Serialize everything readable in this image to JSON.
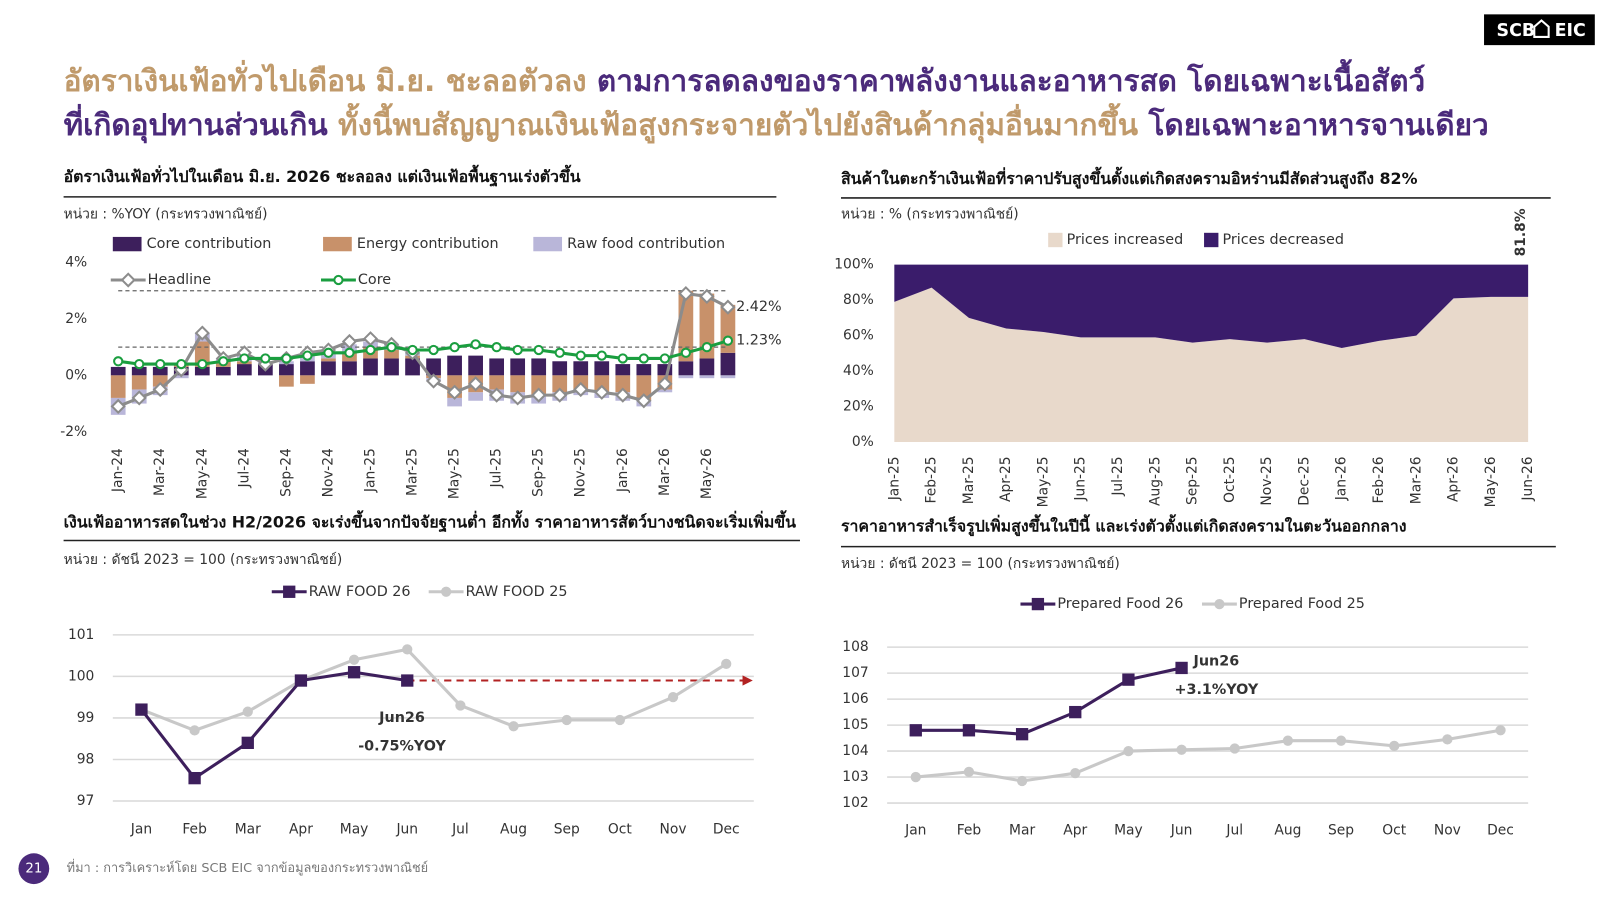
{
  "header": {
    "lines": [
      [
        {
          "text": "อัตราเงินเฟ้อทั่วไปเดือน มิ.ย. ชะลอตัวลง",
          "color": "#c09a6b"
        },
        {
          "text": " ตามการลดลงของราคาพลังงานและอาหารสด โดยเฉพาะเนื้อสัตว์",
          "color": "#4b2a7b"
        }
      ],
      [
        {
          "text": "ที่เกิดอุปทานส่วนเกิน",
          "color": "#4b2a7b"
        },
        {
          "text": " ทั้งนี้พบสัญญาณเงินเฟ้อสูงกระจายตัวไปยังสินค้ากลุ่มอื่นมากขึ้น",
          "color": "#c09a6b"
        },
        {
          "text": " โดยเฉพาะอาหารจานเดียว",
          "color": "#4b2a7b"
        }
      ]
    ]
  },
  "logo": {
    "left": "SCB",
    "right": "EIC"
  },
  "footer": {
    "page_number": "21",
    "source": "ที่มา : การวิเคราะห์โดย SCB EIC จากข้อมูลของกระทรวงพาณิชย์"
  },
  "chart_data": [
    {
      "type": "combo",
      "title": "อัตราเงินเฟ้อทั่วไปในเดือน มิ.ย. 2026 ชะลอลง แต่เงินเฟ้อพื้นฐานเร่งตัวขึ้น",
      "subtitle": "หน่วย : %YOY (กระทรวงพาณิชย์)",
      "categories": [
        "Jan-24",
        null,
        "Mar-24",
        null,
        "May-24",
        null,
        "Jul-24",
        null,
        "Sep-24",
        null,
        "Nov-24",
        null,
        "Jan-25",
        null,
        "Mar-25",
        null,
        "May-25",
        null,
        "Jul-25",
        null,
        "Sep-25",
        null,
        "Nov-25",
        null,
        "Jan-26",
        null,
        "Mar-26",
        null,
        "May-26",
        null
      ],
      "series": [
        {
          "name": "Core contribution",
          "type": "bar",
          "color": "#3d1f5c",
          "values": [
            0.3,
            0.3,
            0.3,
            0.3,
            0.3,
            0.3,
            0.4,
            0.4,
            0.4,
            0.5,
            0.5,
            0.5,
            0.6,
            0.6,
            0.6,
            0.6,
            0.7,
            0.7,
            0.6,
            0.6,
            0.6,
            0.5,
            0.5,
            0.5,
            0.4,
            0.4,
            0.4,
            0.5,
            0.6,
            0.8
          ]
        },
        {
          "name": "Energy contribution",
          "type": "bar",
          "color": "#c8916a",
          "values": [
            -0.8,
            -0.5,
            -0.4,
            0.1,
            0.9,
            0.2,
            0.1,
            0,
            -0.4,
            -0.3,
            0.1,
            0.3,
            0.4,
            0.3,
            0.1,
            -0.1,
            -0.8,
            -0.6,
            -0.5,
            -0.6,
            -0.7,
            -0.6,
            -0.5,
            -0.6,
            -0.6,
            -0.9,
            -0.5,
            2.5,
            2.3,
            1.7
          ]
        },
        {
          "name": "Raw food contribution",
          "type": "bar",
          "color": "#b9b6d9",
          "values": [
            -0.6,
            -0.5,
            -0.3,
            -0.1,
            0.3,
            0.1,
            0.2,
            0.1,
            0.1,
            0.3,
            0.2,
            0.3,
            0.2,
            0.2,
            0.1,
            -0.1,
            -0.3,
            -0.3,
            -0.4,
            -0.4,
            -0.3,
            -0.3,
            -0.2,
            -0.2,
            -0.3,
            -0.2,
            -0.1,
            -0.1,
            -0.1,
            -0.1
          ]
        },
        {
          "name": "Headline",
          "type": "line",
          "marker": "diamond-open",
          "color": "#8c8c8c",
          "values": [
            -1.1,
            -0.8,
            -0.5,
            0.2,
            1.5,
            0.6,
            0.8,
            0.4,
            0.6,
            0.8,
            0.9,
            1.2,
            1.3,
            1.1,
            0.8,
            -0.2,
            -0.6,
            -0.3,
            -0.7,
            -0.8,
            -0.7,
            -0.7,
            -0.5,
            -0.6,
            -0.7,
            -0.9,
            -0.3,
            2.9,
            2.8,
            2.42
          ],
          "value_labels": [
            null,
            null,
            null,
            null,
            null,
            null,
            null,
            null,
            null,
            null,
            null,
            null,
            null,
            null,
            null,
            null,
            null,
            null,
            null,
            null,
            null,
            null,
            null,
            null,
            null,
            null,
            null,
            null,
            null,
            "2.42%"
          ]
        },
        {
          "name": "Core",
          "type": "line",
          "marker": "circle-open",
          "color": "#1a9e3f",
          "values": [
            0.5,
            0.4,
            0.4,
            0.4,
            0.4,
            0.5,
            0.6,
            0.6,
            0.6,
            0.7,
            0.8,
            0.8,
            0.9,
            1.0,
            0.9,
            0.9,
            1.0,
            1.1,
            1.0,
            0.9,
            0.9,
            0.8,
            0.7,
            0.7,
            0.6,
            0.6,
            0.6,
            0.8,
            1.0,
            1.23
          ],
          "value_labels": [
            null,
            null,
            null,
            null,
            null,
            null,
            null,
            null,
            null,
            null,
            null,
            null,
            null,
            null,
            null,
            null,
            null,
            null,
            null,
            null,
            null,
            null,
            null,
            null,
            null,
            null,
            null,
            null,
            null,
            "1.23%"
          ]
        }
      ],
      "reference_lines": [
        1,
        3
      ],
      "ylim": [
        -2,
        4
      ],
      "yticks": [
        {
          "value": -2,
          "label": "-2%"
        },
        {
          "value": 0,
          "label": "0%"
        },
        {
          "value": 2,
          "label": "2%"
        },
        {
          "value": 4,
          "label": "4%"
        }
      ],
      "grid": false
    },
    {
      "type": "area",
      "title": "สินค้าในตะกร้าเงินเฟ้อที่ราคาปรับสูงขึ้นตั้งแต่เกิดสงครามอิหร่านมีสัดส่วนสูงถึง 82%",
      "subtitle": "หน่วย : % (กระทรวงพาณิชย์)",
      "categories": [
        "Jan-25",
        "Feb-25",
        "Mar-25",
        "Apr-25",
        "May-25",
        "Jun-25",
        "Jul-25",
        "Aug-25",
        "Sep-25",
        "Oct-25",
        "Nov-25",
        "Dec-25",
        "Jan-26",
        "Feb-26",
        "Mar-26",
        "Apr-26",
        "May-26",
        "Jun-26"
      ],
      "series": [
        {
          "name": "Prices increased",
          "type": "area",
          "color": "#e8d9cb",
          "values": [
            79,
            87,
            70,
            64,
            62,
            59,
            59,
            59,
            56,
            58,
            56,
            58,
            53,
            57,
            60,
            81,
            81.8,
            81.8
          ],
          "value_labels": [
            null,
            null,
            null,
            null,
            null,
            null,
            null,
            null,
            null,
            null,
            null,
            null,
            null,
            null,
            null,
            null,
            null,
            "81.8%"
          ]
        },
        {
          "name": "Prices decreased",
          "type": "area",
          "color": "#3a1c6b",
          "values": [
            21,
            13,
            30,
            36,
            38,
            41,
            41,
            41,
            44,
            42,
            44,
            42,
            47,
            43,
            40,
            19,
            18.2,
            18.2
          ]
        }
      ],
      "ylim": [
        0,
        100
      ],
      "yticks": [
        {
          "value": 0,
          "label": "0%"
        },
        {
          "value": 20,
          "label": "20%"
        },
        {
          "value": 40,
          "label": "40%"
        },
        {
          "value": 60,
          "label": "60%"
        },
        {
          "value": 80,
          "label": "80%"
        },
        {
          "value": 100,
          "label": "100%"
        }
      ],
      "grid": false
    },
    {
      "type": "line",
      "title": "เงินเฟ้ออาหารสดในช่วง H2/2026 จะเร่งขึ้นจากปัจจัยฐานต่ำ อีกทั้ง ราคาอาหารสัตว์บางชนิดจะเริ่มเพิ่มขึ้น",
      "subtitle": "หน่วย : ดัชนี 2023 = 100 (กระทรวงพาณิชย์)",
      "categories": [
        "Jan",
        "Feb",
        "Mar",
        "Apr",
        "May",
        "Jun",
        "Jul",
        "Aug",
        "Sep",
        "Oct",
        "Nov",
        "Dec"
      ],
      "series": [
        {
          "name": "RAW FOOD 26",
          "type": "line",
          "marker": "square",
          "color": "#3d1f5c",
          "values": [
            99.2,
            97.55,
            98.4,
            99.9,
            100.1,
            99.9,
            null,
            null,
            null,
            null,
            null,
            null
          ]
        },
        {
          "name": "RAW FOOD 25",
          "type": "line",
          "marker": "circle",
          "color": "#c8c8c8",
          "values": [
            99.2,
            98.7,
            99.15,
            99.9,
            100.4,
            100.65,
            99.3,
            98.8,
            98.95,
            98.95,
            99.5,
            100.3
          ]
        }
      ],
      "annotations": [
        "Jun26",
        "-0.75%YOY"
      ],
      "projection": {
        "color": "#b22222"
      },
      "ylim": [
        97,
        101
      ],
      "yticks": [
        97,
        98,
        99,
        100,
        101
      ],
      "grid": true
    },
    {
      "type": "line",
      "title": "ราคาอาหารสำเร็จรูปเพิ่มสูงขึ้นในปีนี้ และเร่งตัวตั้งแต่เกิดสงครามในตะวันออกกลาง",
      "subtitle": "หน่วย : ดัชนี 2023 = 100 (กระทรวงพาณิชย์)",
      "categories": [
        "Jan",
        "Feb",
        "Mar",
        "Apr",
        "May",
        "Jun",
        "Jul",
        "Aug",
        "Sep",
        "Oct",
        "Nov",
        "Dec"
      ],
      "series": [
        {
          "name": "Prepared Food 26",
          "type": "line",
          "marker": "square",
          "color": "#3d1f5c",
          "values": [
            104.8,
            104.8,
            104.65,
            105.5,
            106.75,
            107.2,
            null,
            null,
            null,
            null,
            null,
            null
          ]
        },
        {
          "name": "Prepared Food 25",
          "type": "line",
          "marker": "circle",
          "color": "#c8c8c8",
          "values": [
            103.0,
            103.2,
            102.85,
            103.15,
            104.0,
            104.05,
            104.1,
            104.4,
            104.4,
            104.2,
            104.45,
            104.8
          ]
        }
      ],
      "annotations": [
        "Jun26",
        "+3.1%YOY"
      ],
      "ylim": [
        102,
        108
      ],
      "yticks": [
        102,
        103,
        104,
        105,
        106,
        107,
        108
      ],
      "grid": true
    }
  ]
}
